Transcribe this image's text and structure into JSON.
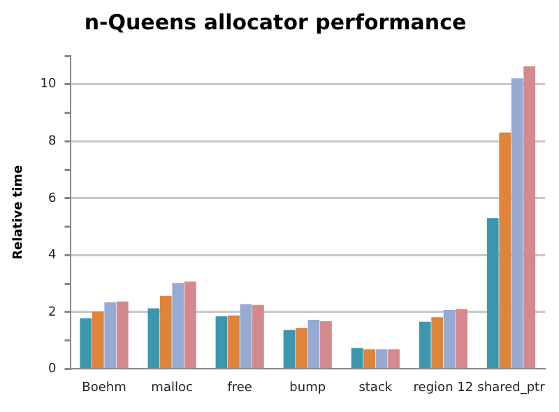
{
  "chart_data": {
    "type": "bar",
    "title": "n-Queens allocator performance",
    "ylabel": "Relative time",
    "categories": [
      "Boehm",
      "malloc",
      "free",
      "bump",
      "stack",
      "region 12",
      "shared_ptr"
    ],
    "series": [
      {
        "color": "#3a97ad",
        "values": [
          1.78,
          2.13,
          1.85,
          1.37,
          0.74,
          1.66,
          5.3
        ]
      },
      {
        "color": "#e0843a",
        "values": [
          2.01,
          2.57,
          1.88,
          1.43,
          0.69,
          1.82,
          8.31
        ]
      },
      {
        "color": "#95abd3",
        "values": [
          2.34,
          3.02,
          2.28,
          1.73,
          0.69,
          2.07,
          10.21
        ]
      },
      {
        "color": "#d4898c",
        "values": [
          2.37,
          3.07,
          2.25,
          1.68,
          0.69,
          2.11,
          10.63
        ]
      }
    ],
    "ylim": [
      0,
      11
    ],
    "yticks": [
      0,
      {
        "value": 1,
        "label": null
      },
      2,
      {
        "value": 3,
        "label": null
      },
      4,
      {
        "value": 5,
        "label": null
      },
      6,
      {
        "value": 7,
        "label": null
      },
      8,
      {
        "value": 9,
        "label": null
      },
      10,
      {
        "value": 11,
        "label": null
      }
    ],
    "grid": "y",
    "legend": false
  }
}
